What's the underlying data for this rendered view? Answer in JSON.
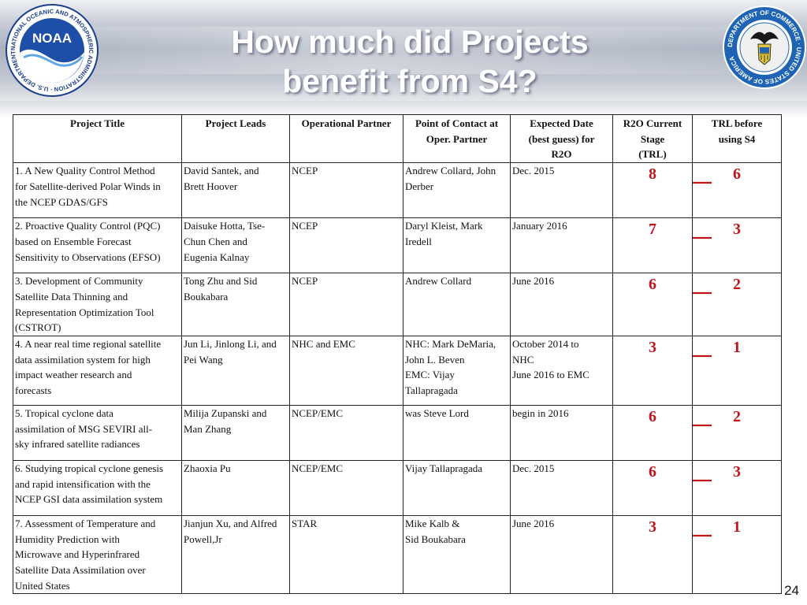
{
  "slide": {
    "title_line1": "How much did Projects",
    "title_line2": "benefit from S4?",
    "page_number": "24"
  },
  "logos": {
    "noaa": {
      "center_text": "NOAA",
      "ring_text": "NATIONAL OCEANIC AND ATMOSPHERIC ADMINISTRATION · U.S. DEPARTMENT OF COMMERCE"
    },
    "doc": {
      "ring_text": "DEPARTMENT OF COMMERCE · UNITED STATES OF AMERICA"
    }
  },
  "colors": {
    "accent_red": "#c0141b",
    "title_white": "#ffffff"
  },
  "table": {
    "headers": {
      "title": "Project Title",
      "leads": "Project Leads",
      "partner": "Operational Partner",
      "contact_1": "Point of Contact at",
      "contact_2": "Oper. Partner",
      "date_1": "Expected Date",
      "date_2": "(best guess) for",
      "date_3": "R2O",
      "stage_1": "R2O Current",
      "stage_2": "Stage",
      "stage_3": "(TRL)",
      "trl_1": "TRL before",
      "trl_2": "using S4"
    },
    "rows": [
      {
        "title_lines": [
          "1. A New Quality Control Method",
          "for Satellite-derived Polar Winds in",
          "the NCEP GDAS/GFS"
        ],
        "leads_lines": [
          "David Santek, and",
          "Brett Hoover"
        ],
        "partner": "NCEP",
        "contact_lines": [
          "Andrew Collard, John",
          "Derber"
        ],
        "date_lines": [
          "Dec. 2015"
        ],
        "stage": "8",
        "trl_before": "6"
      },
      {
        "title_lines": [
          "2. Proactive Quality Control (PQC)",
          "based on Ensemble Forecast",
          "Sensitivity to Observations (EFSO)"
        ],
        "leads_lines": [
          "Daisuke Hotta, Tse-",
          "Chun Chen  and",
          "Eugenia Kalnay"
        ],
        "partner": "NCEP",
        "contact_lines": [
          "Daryl Kleist, Mark",
          "Iredell"
        ],
        "date_lines": [
          "January 2016"
        ],
        "stage": "7",
        "trl_before": "3"
      },
      {
        "title_lines": [
          "3. Development of Community",
          "Satellite Data Thinning and",
          "Representation Optimization Tool",
          "(CSTROT)"
        ],
        "leads_lines": [
          "Tong Zhu and Sid",
          "Boukabara"
        ],
        "partner": "NCEP",
        "contact_lines": [
          "Andrew Collard"
        ],
        "date_lines": [
          "June 2016"
        ],
        "stage": "6",
        "trl_before": "2"
      },
      {
        "title_lines": [
          "4. A near real time regional satellite",
          "data assimilation system for high",
          "impact weather research and",
          "forecasts"
        ],
        "leads_lines": [
          "Jun Li, Jinlong Li, and",
          "Pei Wang"
        ],
        "partner": "NHC and EMC",
        "contact_lines": [
          "NHC: Mark DeMaria,",
          "John L. Beven",
          "EMC: Vijay",
          "Tallapragada"
        ],
        "date_lines": [
          "October 2014 to",
          "NHC",
          "June 2016 to EMC"
        ],
        "stage": "3",
        "trl_before": "1"
      },
      {
        "title_lines": [
          "5. Tropical cyclone data",
          "assimilation of MSG SEVIRI all-",
          "sky infrared satellite radiances"
        ],
        "leads_lines": [
          "Milija Zupanski and",
          "Man Zhang"
        ],
        "partner": "NCEP/EMC",
        "contact_lines": [
          "was Steve Lord"
        ],
        "date_lines": [
          "begin in 2016"
        ],
        "stage": "6",
        "trl_before": "2"
      },
      {
        "title_lines": [
          "6. Studying tropical cyclone genesis",
          "and rapid intensification with the",
          "NCEP GSI data assimilation system"
        ],
        "leads_lines": [
          "Zhaoxia Pu"
        ],
        "partner": "NCEP/EMC",
        "contact_lines": [
          "Vijay Tallapragada"
        ],
        "date_lines": [
          "Dec. 2015"
        ],
        "stage": "6",
        "trl_before": "3"
      },
      {
        "title_lines": [
          "7. Assessment of Temperature and",
          "Humidity Prediction with",
          "Microwave and Hyperinfrared",
          "Satellite Data Assimilation over",
          "United States"
        ],
        "leads_lines": [
          "Jianjun Xu, and Alfred",
          "Powell,Jr"
        ],
        "partner": "STAR",
        "contact_lines": [
          "Mike Kalb &",
          "Sid Boukabara"
        ],
        "date_lines": [
          "June 2016"
        ],
        "stage": "3",
        "trl_before": "1"
      }
    ]
  }
}
